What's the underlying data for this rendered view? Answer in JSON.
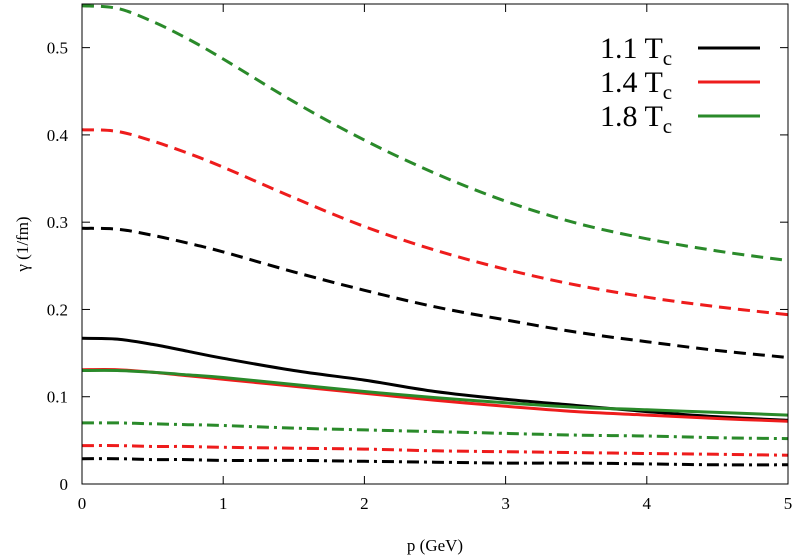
{
  "chart_data": {
    "type": "line",
    "title": "",
    "xlabel": "p (GeV)",
    "ylabel": "γ (1/fm)",
    "xlim": [
      0,
      5
    ],
    "ylim": [
      0,
      0.55
    ],
    "xticks": [
      "0",
      "1",
      "2",
      "3",
      "4",
      "5"
    ],
    "yticks": [
      "0",
      "0.1",
      "0.2",
      "0.3",
      "0.4",
      "0.5"
    ],
    "grid": false,
    "legend_position": "top-right",
    "legend": [
      {
        "main": "1.1 T",
        "sub": "c",
        "color": "#000000"
      },
      {
        "main": "1.4 T",
        "sub": "c",
        "color": "#ee1c1c"
      },
      {
        "main": "1.8 T",
        "sub": "c",
        "color": "#2a8a2a"
      }
    ],
    "x": [
      0,
      0.25,
      0.5,
      0.75,
      1,
      1.5,
      2,
      2.5,
      3,
      3.5,
      4,
      4.5,
      5
    ],
    "series": [
      {
        "color": "#2a8a2a",
        "style": "dashed",
        "values": [
          0.548,
          0.545,
          0.53,
          0.51,
          0.487,
          0.438,
          0.394,
          0.356,
          0.324,
          0.299,
          0.281,
          0.267,
          0.256
        ]
      },
      {
        "color": "#ee1c1c",
        "style": "dashed",
        "values": [
          0.406,
          0.404,
          0.393,
          0.379,
          0.363,
          0.328,
          0.295,
          0.268,
          0.246,
          0.228,
          0.214,
          0.203,
          0.194
        ]
      },
      {
        "color": "#000000",
        "style": "dashed",
        "values": [
          0.293,
          0.292,
          0.285,
          0.276,
          0.266,
          0.243,
          0.222,
          0.203,
          0.188,
          0.174,
          0.163,
          0.153,
          0.145
        ]
      },
      {
        "color": "#000000",
        "style": "solid",
        "values": [
          0.167,
          0.166,
          0.16,
          0.152,
          0.144,
          0.13,
          0.119,
          0.106,
          0.097,
          0.09,
          0.083,
          0.077,
          0.073
        ]
      },
      {
        "color": "#ee1c1c",
        "style": "solid",
        "values": [
          0.131,
          0.131,
          0.128,
          0.124,
          0.12,
          0.112,
          0.104,
          0.096,
          0.089,
          0.083,
          0.079,
          0.075,
          0.072
        ]
      },
      {
        "color": "#2a8a2a",
        "style": "solid",
        "values": [
          0.13,
          0.13,
          0.128,
          0.125,
          0.122,
          0.114,
          0.106,
          0.099,
          0.093,
          0.088,
          0.085,
          0.082,
          0.079
        ]
      },
      {
        "color": "#2a8a2a",
        "style": "dashdot",
        "values": [
          0.07,
          0.07,
          0.069,
          0.068,
          0.067,
          0.064,
          0.062,
          0.06,
          0.058,
          0.056,
          0.055,
          0.053,
          0.052
        ]
      },
      {
        "color": "#ee1c1c",
        "style": "dashdot",
        "values": [
          0.044,
          0.044,
          0.043,
          0.043,
          0.042,
          0.041,
          0.04,
          0.038,
          0.037,
          0.036,
          0.035,
          0.034,
          0.033
        ]
      },
      {
        "color": "#000000",
        "style": "dashdot",
        "values": [
          0.029,
          0.029,
          0.028,
          0.028,
          0.027,
          0.027,
          0.026,
          0.025,
          0.024,
          0.024,
          0.023,
          0.022,
          0.022
        ]
      }
    ]
  }
}
